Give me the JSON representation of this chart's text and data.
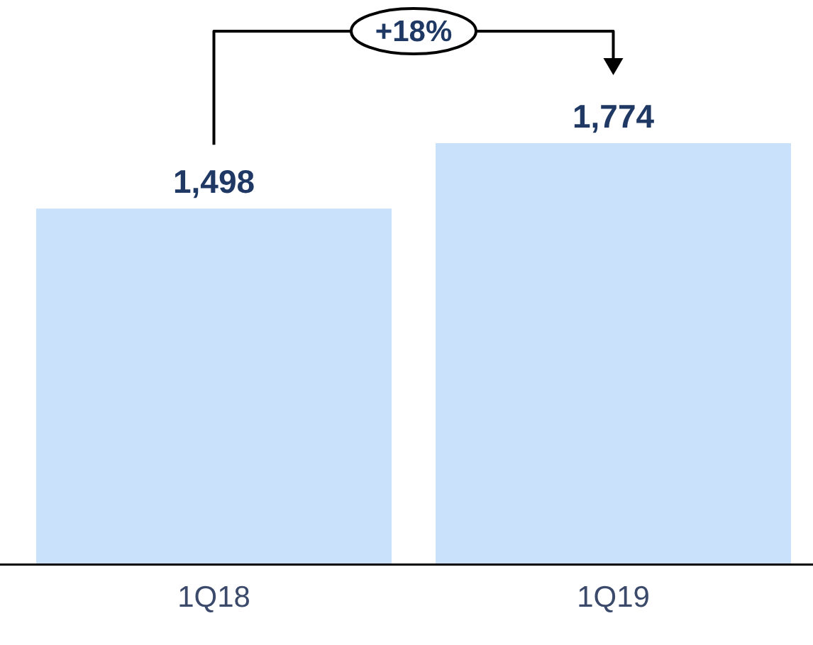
{
  "chart_data": {
    "type": "bar",
    "categories": [
      "1Q18",
      "1Q19"
    ],
    "values": [
      1498,
      1774
    ],
    "color": "#c9e1fb",
    "value_labels": [
      "1,498",
      "1,774"
    ],
    "grid": false,
    "legend": false,
    "tick_labels": "x",
    "annotations": [
      "+18%"
    ]
  }
}
